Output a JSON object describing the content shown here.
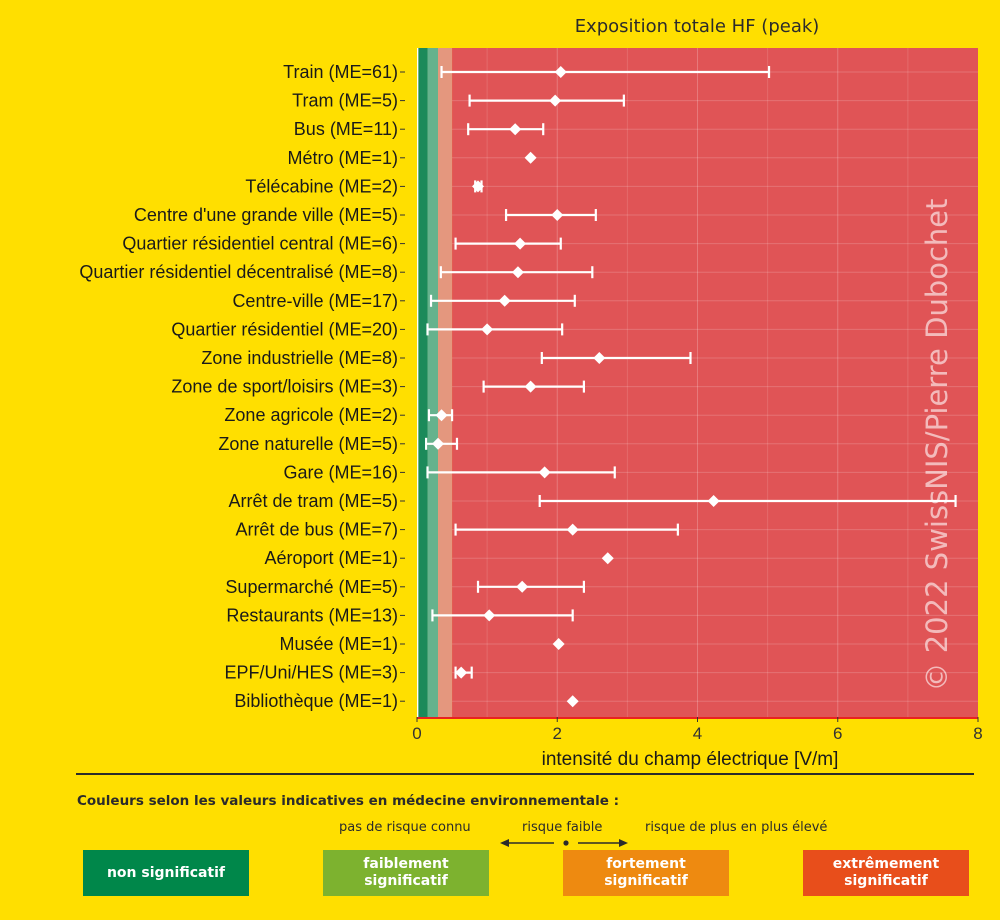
{
  "chart_data": {
    "type": "errorbar",
    "title": "Exposition totale HF (peak)",
    "xlabel": "intensité du champ électrique [V/m]",
    "xlim": [
      0,
      8
    ],
    "xticks": [
      "0",
      "2",
      "4",
      "6",
      "8"
    ],
    "background_bands": [
      {
        "from": 0,
        "to": 0.02,
        "color": "#ffffff"
      },
      {
        "from": 0.02,
        "to": 0.15,
        "color": "#1b8a5a"
      },
      {
        "from": 0.15,
        "to": 0.3,
        "color": "#66b28d"
      },
      {
        "from": 0.3,
        "to": 0.5,
        "color": "#e4977e"
      },
      {
        "from": 0.5,
        "to": 8,
        "color": "#e05456"
      }
    ],
    "categories": [
      "Train (ME=61)",
      "Tram (ME=5)",
      "Bus (ME=11)",
      "Métro (ME=1)",
      "Télécabine (ME=2)",
      "Centre d'une grande ville (ME=5)",
      "Quartier résidentiel central (ME=6)",
      "Quartier résidentiel décentralisé (ME=8)",
      "Centre-ville (ME=17)",
      "Quartier résidentiel (ME=20)",
      "Zone industrielle (ME=8)",
      "Zone de sport/loisirs (ME=3)",
      "Zone agricole (ME=2)",
      "Zone naturelle (ME=5)",
      "Gare (ME=16)",
      "Arrêt de tram (ME=5)",
      "Arrêt de bus (ME=7)",
      "Aéroport (ME=1)",
      "Supermarché (ME=5)",
      "Restaurants (ME=13)",
      "Musée (ME=1)",
      "EPF/Uni/HES (ME=3)",
      "Bibliothèque (ME=1)"
    ],
    "values": [
      2.05,
      1.97,
      1.4,
      1.62,
      0.87,
      2.0,
      1.47,
      1.44,
      1.25,
      1.0,
      2.6,
      1.62,
      0.35,
      0.3,
      1.82,
      4.23,
      2.22,
      2.72,
      1.5,
      1.03,
      2.02,
      0.63,
      2.22
    ],
    "lower": [
      0.35,
      0.75,
      0.73,
      null,
      0.83,
      1.27,
      0.55,
      0.34,
      0.2,
      0.15,
      1.78,
      0.95,
      0.17,
      0.13,
      0.15,
      1.75,
      0.55,
      null,
      0.87,
      0.22,
      null,
      0.55,
      null
    ],
    "upper": [
      5.02,
      2.95,
      1.8,
      null,
      0.92,
      2.55,
      2.05,
      2.5,
      2.25,
      2.07,
      3.9,
      2.38,
      0.5,
      0.57,
      2.82,
      7.68,
      3.72,
      null,
      2.38,
      2.22,
      null,
      0.78,
      null
    ],
    "watermark": "© 2022 SwissNIS/Pierre Dubochet"
  },
  "legend": {
    "title": "Couleurs selon les valeurs indicatives en médecine environnementale :",
    "no_risk": "pas de risque connu",
    "low_risk": "risque faible",
    "rising_risk": "risque de plus en plus élevé",
    "boxes": [
      {
        "label": "non significatif",
        "color": "#00874A"
      },
      {
        "label": "faiblement\nsignificatif",
        "color": "#7DB22F"
      },
      {
        "label": "fortement\nsignificatif",
        "color": "#EE8A10"
      },
      {
        "label": "extrêmement\nsignificatif",
        "color": "#E84E1B"
      }
    ]
  }
}
